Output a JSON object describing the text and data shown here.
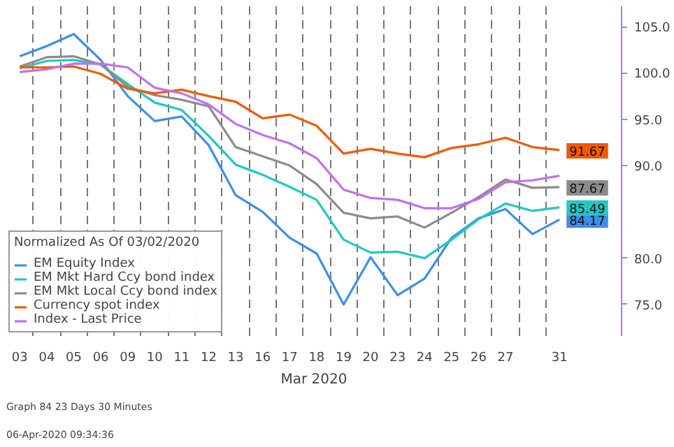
{
  "chart_data": {
    "type": "line",
    "legend_title": "Normalized As Of 03/02/2020",
    "xlabel": "Mar 2020",
    "annotations": [
      "Graph 84 23 Days 30 Minutes",
      "06-Apr-2020 09:34:36"
    ],
    "categories": [
      "03",
      "04",
      "05",
      "06",
      "09",
      "10",
      "11",
      "12",
      "13",
      "16",
      "17",
      "18",
      "19",
      "20",
      "23",
      "24",
      "25",
      "26",
      "27",
      null,
      "31"
    ],
    "ylim": [
      71.6,
      107.2
    ],
    "yticks": [
      {
        "value": 75,
        "label": "75.0"
      },
      {
        "value": 80,
        "label": "80.0"
      },
      {
        "value": 90,
        "label": "90.0"
      },
      {
        "value": 95,
        "label": "95.0"
      },
      {
        "value": 100,
        "label": "100.0"
      },
      {
        "value": 105,
        "label": "105.0"
      }
    ],
    "grid": "x",
    "legend": "bottom left",
    "series": [
      {
        "name": "EM Equity Index",
        "color": "#3d8fe8",
        "values": [
          101.8,
          102.9,
          104.2,
          101.4,
          97.5,
          94.8,
          95.3,
          92.2,
          86.8,
          85.0,
          82.2,
          80.5,
          75.0,
          80.1,
          76.0,
          77.8,
          82.2,
          84.3,
          85.3,
          82.6,
          84.17
        ],
        "value_labels": [
          null,
          null,
          null,
          null,
          null,
          null,
          null,
          null,
          null,
          null,
          null,
          null,
          null,
          null,
          null,
          null,
          null,
          null,
          null,
          null,
          "84.17"
        ]
      },
      {
        "name": "EM Mkt Hard Ccy bond index",
        "color": "#23c8c0",
        "values": [
          100.5,
          101.3,
          101.4,
          100.9,
          98.8,
          96.8,
          96.0,
          93.2,
          90.1,
          89.0,
          87.7,
          86.3,
          82.0,
          80.6,
          80.7,
          80.0,
          82.0,
          84.2,
          85.9,
          85.1,
          85.49
        ],
        "value_labels": [
          null,
          null,
          null,
          null,
          null,
          null,
          null,
          null,
          null,
          null,
          null,
          null,
          null,
          null,
          null,
          null,
          null,
          null,
          null,
          null,
          "85.49"
        ]
      },
      {
        "name": "EM Mkt Local Ccy bond index",
        "color": "#8c8c8c",
        "values": [
          100.7,
          101.7,
          101.8,
          100.9,
          98.5,
          97.6,
          97.1,
          96.4,
          92.0,
          91.0,
          90.0,
          88.0,
          84.9,
          84.3,
          84.5,
          83.3,
          84.9,
          86.6,
          88.5,
          87.6,
          87.67
        ],
        "value_labels": [
          null,
          null,
          null,
          null,
          null,
          null,
          null,
          null,
          null,
          null,
          null,
          null,
          null,
          null,
          null,
          null,
          null,
          null,
          null,
          null,
          "87.67"
        ]
      },
      {
        "name": "Currency spot index",
        "color": "#f05a00",
        "values": [
          100.6,
          100.6,
          100.7,
          99.9,
          98.3,
          97.8,
          98.2,
          97.5,
          96.9,
          95.1,
          95.5,
          94.3,
          91.3,
          91.8,
          91.3,
          90.9,
          91.9,
          92.3,
          93.0,
          92.0,
          91.67
        ],
        "value_labels": [
          null,
          null,
          null,
          null,
          null,
          null,
          null,
          null,
          null,
          null,
          null,
          null,
          null,
          null,
          null,
          null,
          null,
          null,
          null,
          null,
          "91.67"
        ]
      },
      {
        "name": "Index - Last Price",
        "color": "#c070f0",
        "values": [
          100.1,
          100.4,
          101.0,
          101.0,
          100.6,
          98.4,
          97.8,
          96.6,
          94.5,
          93.3,
          92.4,
          90.8,
          87.4,
          86.5,
          86.3,
          85.4,
          85.4,
          86.4,
          88.2,
          88.4,
          88.9
        ]
      }
    ]
  }
}
